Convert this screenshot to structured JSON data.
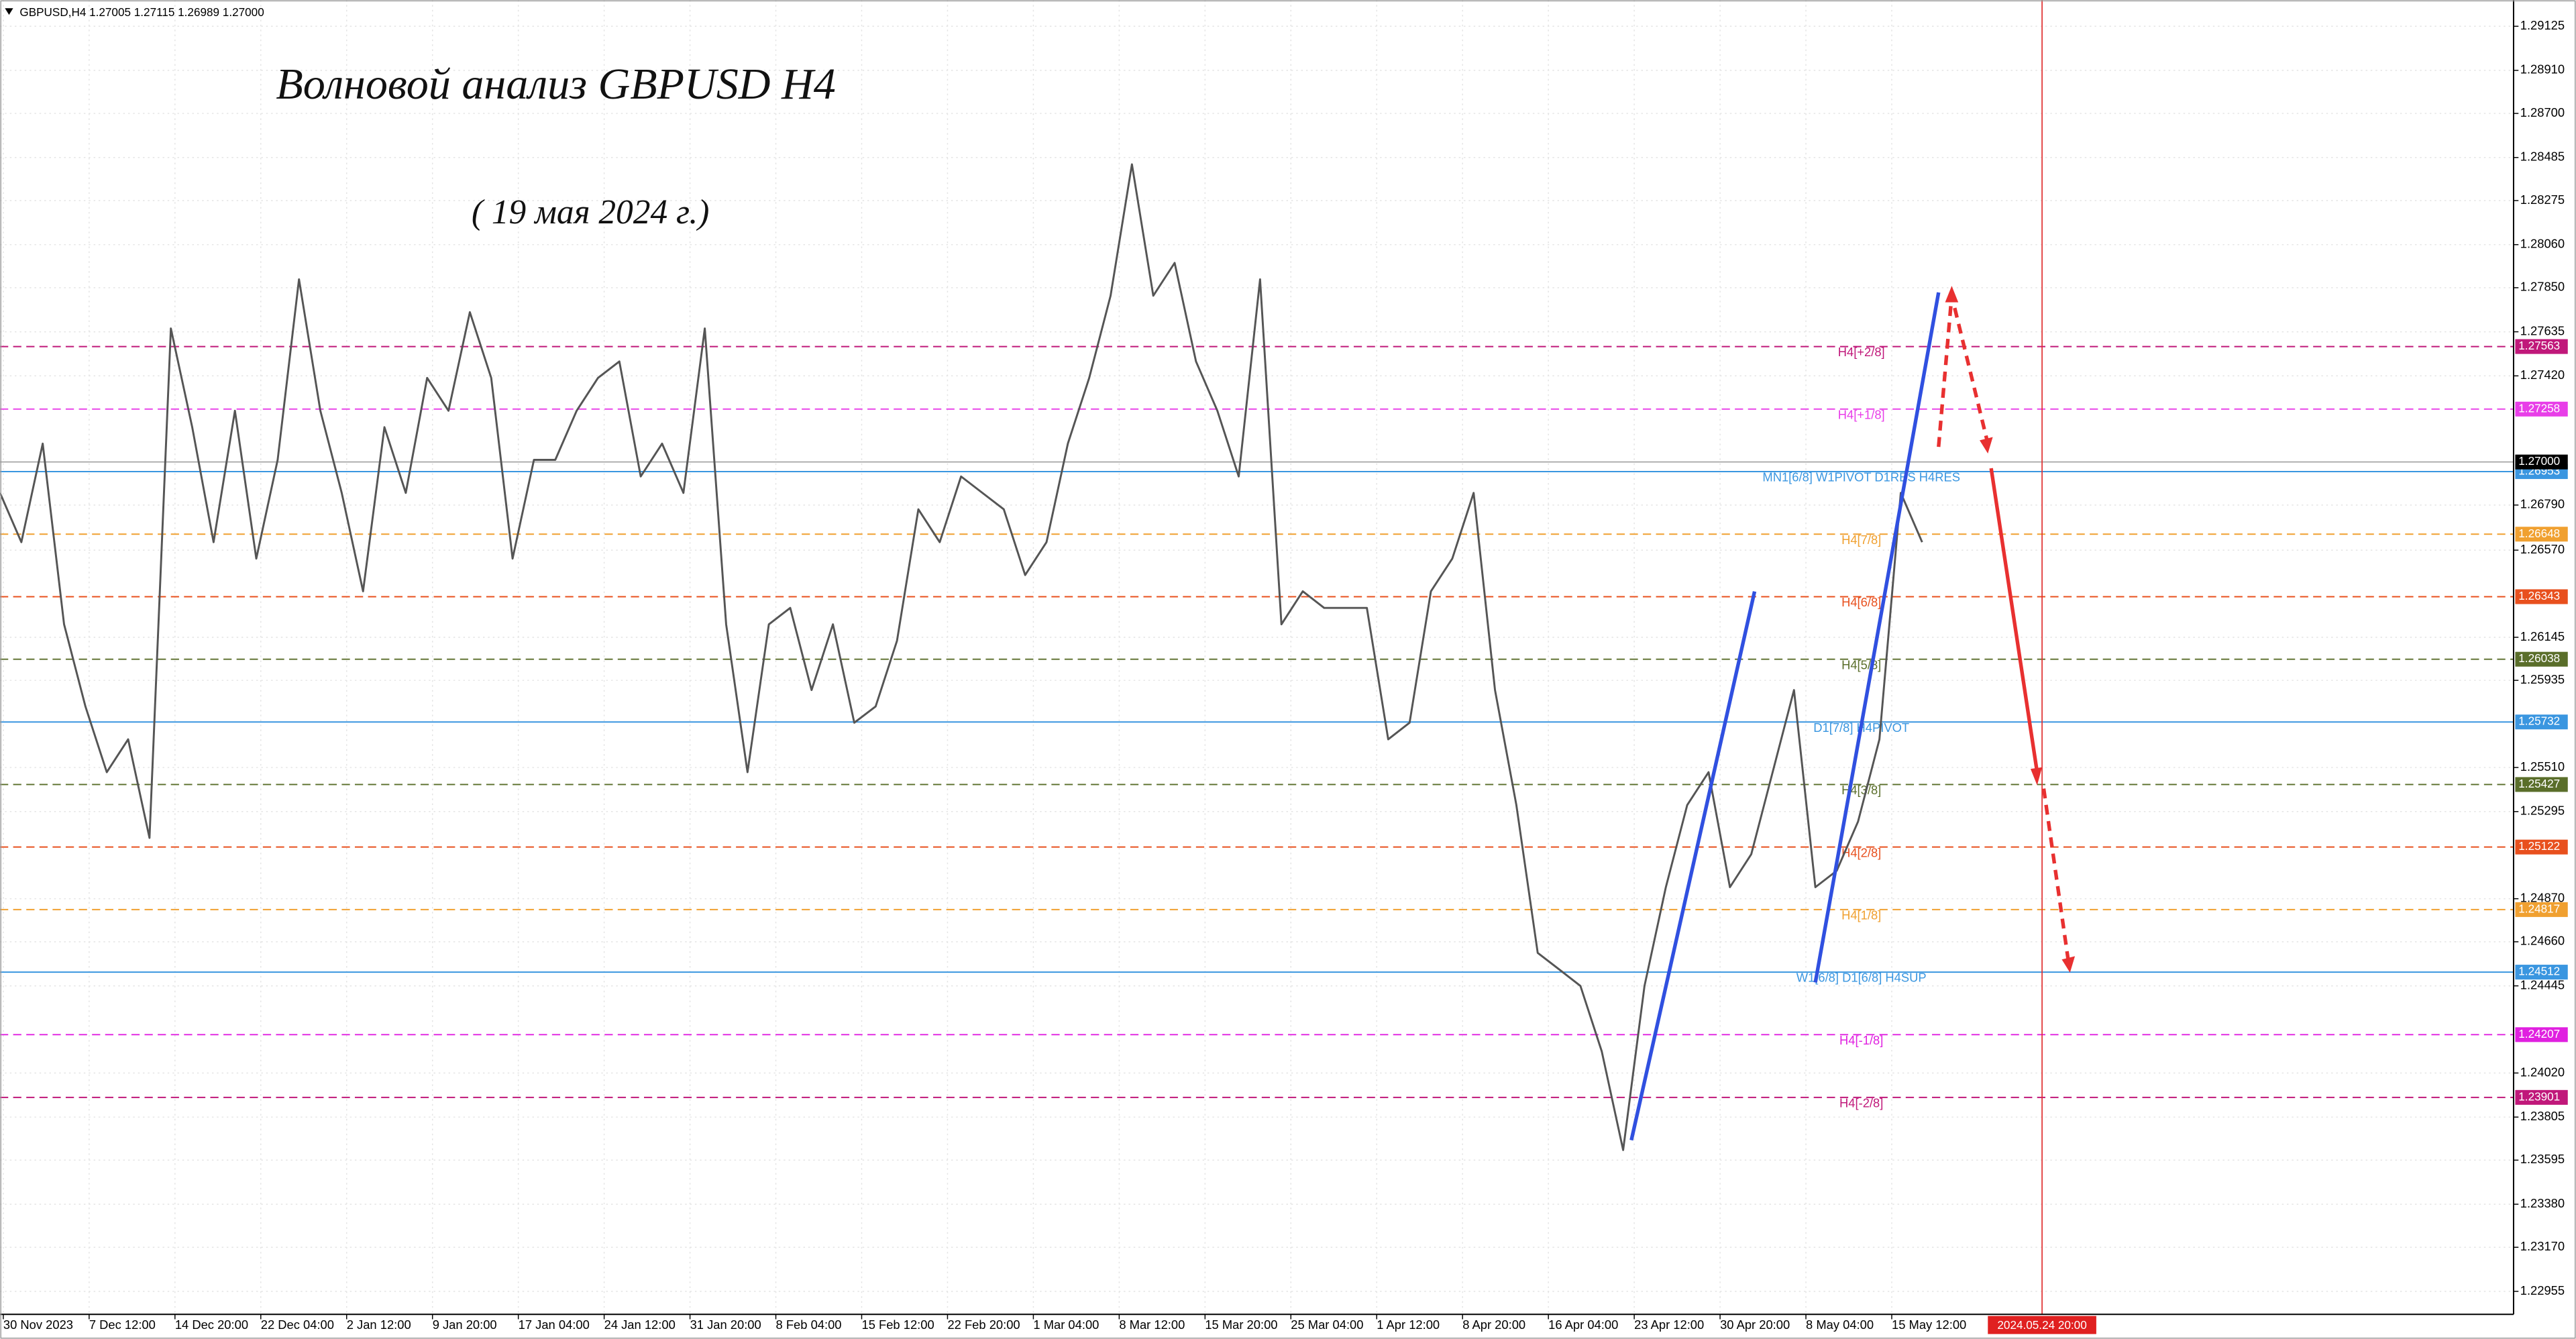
{
  "chart_data": {
    "type": "line",
    "header": "GBPUSD,H4  1.27005 1.27115 1.26989 1.27000",
    "title": "Волновой анализ GBPUSD H4",
    "subtitle": "( 19 мая 2024 г.)",
    "categories": [
      "30 Nov 2023",
      "7 Dec 12:00",
      "14 Dec 20:00",
      "22 Dec 04:00",
      "2 Jan 12:00",
      "9 Jan 20:00",
      "17 Jan 04:00",
      "24 Jan 12:00",
      "31 Jan 20:00",
      "8 Feb 04:00",
      "15 Feb 12:00",
      "22 Feb 20:00",
      "1 Mar 04:00",
      "8 Mar 12:00",
      "15 Mar 20:00",
      "25 Mar 04:00",
      "1 Apr 12:00",
      "8 Apr 20:00",
      "16 Apr 04:00",
      "23 Apr 12:00",
      "30 Apr 20:00",
      "8 May 04:00",
      "15 May 12:00"
    ],
    "marker_date": "2024.05.24 20:00",
    "price": {
      "color": "#555555",
      "values": [
        1.26849,
        1.26609,
        1.2709,
        1.26208,
        1.25808,
        1.25487,
        1.25647,
        1.25167,
        1.27651,
        1.2717,
        1.26609,
        1.2725,
        1.26529,
        1.2701,
        1.27891,
        1.2725,
        1.26849,
        1.26369,
        1.2717,
        1.26849,
        1.2741,
        1.2725,
        1.27731,
        1.2741,
        1.26529,
        1.2701,
        1.2701,
        1.2725,
        1.2741,
        1.2749,
        1.26929,
        1.2709,
        1.26849,
        1.27651,
        1.26208,
        1.25487,
        1.26208,
        1.26288,
        1.25888,
        1.26208,
        1.25728,
        1.25808,
        1.26128,
        1.26769,
        1.26609,
        1.26929,
        1.26849,
        1.26769,
        1.26449,
        1.26609,
        1.2709,
        1.2741,
        1.27811,
        1.28452,
        1.27811,
        1.27971,
        1.2749,
        1.2725,
        1.26929,
        1.27891,
        1.26208,
        1.26369,
        1.26288,
        1.26288,
        1.26288,
        1.25647,
        1.25728,
        1.26369,
        1.26529,
        1.26849,
        1.25888,
        1.25327,
        1.24606,
        1.24526,
        1.24445,
        1.24125,
        1.23644,
        1.24445,
        1.24926,
        1.25327,
        1.25487,
        1.24926,
        1.25087,
        1.25487,
        1.25888,
        1.24926,
        1.25006,
        1.25247,
        1.25647,
        1.26849,
        1.26609
      ]
    },
    "ylim": [
      1.22843,
      1.29237
    ],
    "yticks": [
      1.29125,
      {
        "value": 1.2891,
        "label": "1.28910"
      },
      {
        "value": 1.287,
        "label": "1.28700"
      },
      1.28485,
      1.28275,
      {
        "value": 1.2806,
        "label": "1.28060"
      },
      {
        "value": 1.2785,
        "label": "1.27850"
      },
      1.27635,
      {
        "value": 1.2742,
        "label": "1.27420"
      },
      {
        "value": 1.2679,
        "label": "1.26790"
      },
      {
        "value": 1.2657,
        "label": "1.26570"
      },
      1.26145,
      1.25935,
      {
        "value": 1.2551,
        "label": "1.25510"
      },
      1.25295,
      {
        "value": 1.2487,
        "label": "1.24870"
      },
      {
        "value": 1.2466,
        "label": "1.24660"
      },
      1.24445,
      {
        "value": 1.2402,
        "label": "1.24020"
      },
      1.23805,
      1.23595,
      {
        "value": 1.2338,
        "label": "1.23380"
      },
      {
        "value": 1.2317,
        "label": "1.23170"
      },
      1.22955
    ],
    "grid": true,
    "current": {
      "value": 1.27,
      "label": "1.27000"
    },
    "levels": [
      {
        "name": "H4[+2/8]",
        "value": 1.27563,
        "color": "#c0187a",
        "dashed": true
      },
      {
        "name": "H4[+1/8]",
        "value": 1.27258,
        "color": "#e83ee8",
        "dashed": true
      },
      {
        "name": "MN1[6/8] W1PIVOT D1RES H4RES",
        "value": 1.26953,
        "color": "#3a96e0",
        "dashed": false
      },
      {
        "name": "H4[7/8]",
        "value": 1.26648,
        "color": "#f0a030",
        "dashed": true
      },
      {
        "name": "H4[6/8]",
        "value": 1.26343,
        "color": "#e8501e",
        "dashed": true
      },
      {
        "name": "H4[5/8]",
        "value": 1.26038,
        "color": "#5a6e2a",
        "dashed": true
      },
      {
        "name": "D1[7/8] H4PIVOT",
        "value": 1.25732,
        "color": "#3a96e0",
        "dashed": false
      },
      {
        "name": "H4[3/8]",
        "value": 1.25427,
        "color": "#5a6e2a",
        "dashed": true
      },
      {
        "name": "H4[2/8]",
        "value": 1.25122,
        "color": "#e8501e",
        "dashed": true
      },
      {
        "name": "H4[1/8]",
        "value": 1.24817,
        "color": "#f0a030",
        "dashed": true
      },
      {
        "name": "W1[6/8] D1[6/8] H4SUP",
        "value": 1.24512,
        "color": "#3a96e0",
        "dashed": false
      },
      {
        "name": "H4[-1/8]",
        "value": 1.24207,
        "color": "#e020e0",
        "dashed": true
      },
      {
        "name": "H4[-2/8]",
        "value": 1.23901,
        "color": "#c0187a",
        "dashed": true
      }
    ]
  }
}
